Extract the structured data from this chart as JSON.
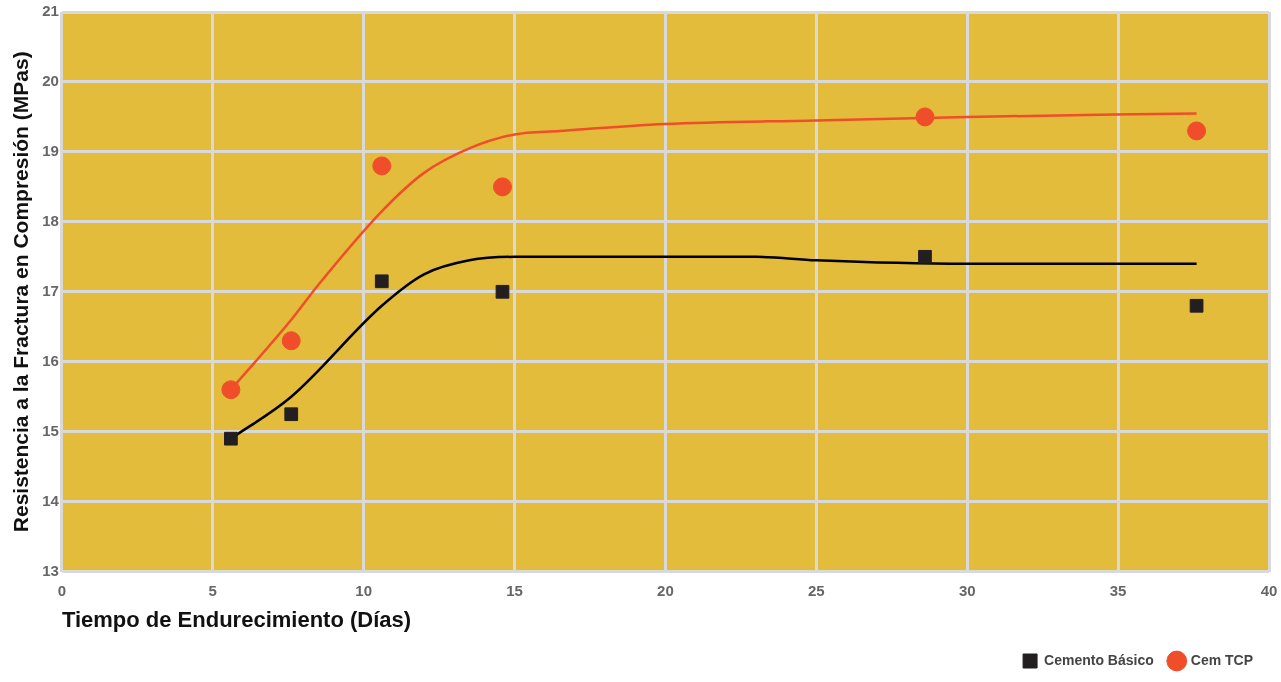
{
  "chart_data": {
    "type": "scatter",
    "xlabel": "Tiempo de Endurecimiento (Días)",
    "ylabel": "Resistencia a la Fractura en Compresión (MPas)",
    "xlim": [
      0,
      40
    ],
    "xticks": [
      0,
      5,
      10,
      15,
      20,
      25,
      30,
      35,
      40
    ],
    "ylim": [
      13,
      21
    ],
    "yticks": [
      13,
      14,
      15,
      16,
      17,
      18,
      19,
      20,
      21
    ],
    "grid": true,
    "legend": "bottom right",
    "series": [
      {
        "name": "Cemento Básico",
        "marker": "square",
        "color": "#231f20",
        "x": [
          5.6,
          7.6,
          10.6,
          14.6,
          28.6,
          37.6
        ],
        "values": [
          14.9,
          15.25,
          17.15,
          17.0,
          17.5,
          16.8
        ]
      },
      {
        "type": "line",
        "marker": "none",
        "color": "#000000",
        "x": [
          5.6,
          7.6,
          10.6,
          12,
          13.5,
          15,
          20,
          23,
          25,
          30,
          37.6
        ],
        "values": [
          14.9,
          15.5,
          16.8,
          17.25,
          17.45,
          17.5,
          17.5,
          17.5,
          17.45,
          17.4,
          17.4
        ]
      },
      {
        "name": "Cem TCP",
        "marker": "circle",
        "color": "#f04e2b",
        "x": [
          5.6,
          7.6,
          10.6,
          14.6,
          28.6,
          37.6
        ],
        "values": [
          15.6,
          16.3,
          18.8,
          18.5,
          19.5,
          19.3
        ]
      },
      {
        "type": "line",
        "marker": "none",
        "color": "#f04e2b",
        "x": [
          5.6,
          7.6,
          8.5,
          10.6,
          12,
          13.5,
          15,
          16.5,
          20,
          25,
          30,
          37.6
        ],
        "values": [
          15.6,
          16.6,
          17.1,
          18.15,
          18.7,
          19.05,
          19.25,
          19.3,
          19.4,
          19.45,
          19.5,
          19.55
        ]
      }
    ]
  }
}
